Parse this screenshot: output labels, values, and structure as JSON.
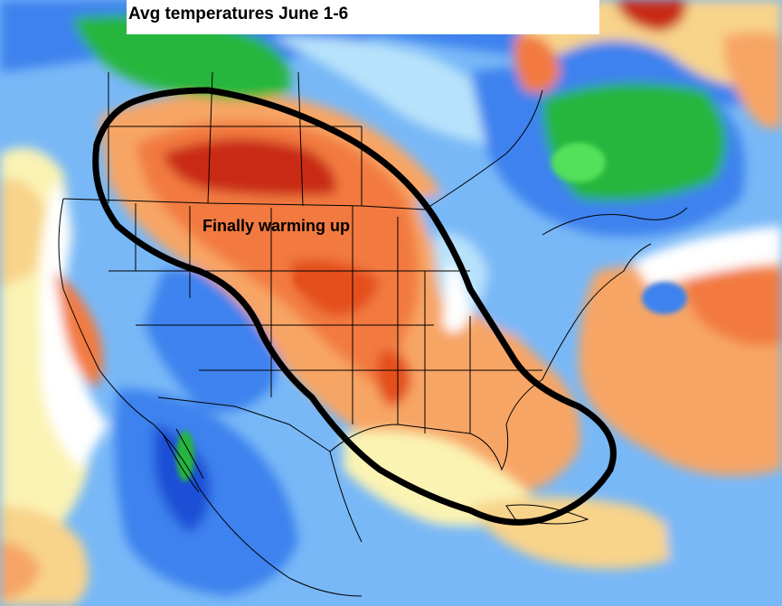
{
  "map": {
    "title": "Avg temperatures June 1-6",
    "annotation": "Finally warming up",
    "colors": {
      "deep_blue": "#1a4fd6",
      "blue": "#3c82ee",
      "light_blue": "#78b8f7",
      "pale_blue": "#b7e2fb",
      "white": "#ffffff",
      "pale_yellow": "#fbf3b3",
      "yellow": "#f8d38a",
      "light_orange": "#f7a565",
      "orange": "#f27a40",
      "red_orange": "#e4501f",
      "dark_red": "#c92a12",
      "green": "#27b63d",
      "light_green": "#52e05a",
      "outline": "#000000",
      "lakes": "#6b6b2a"
    }
  }
}
